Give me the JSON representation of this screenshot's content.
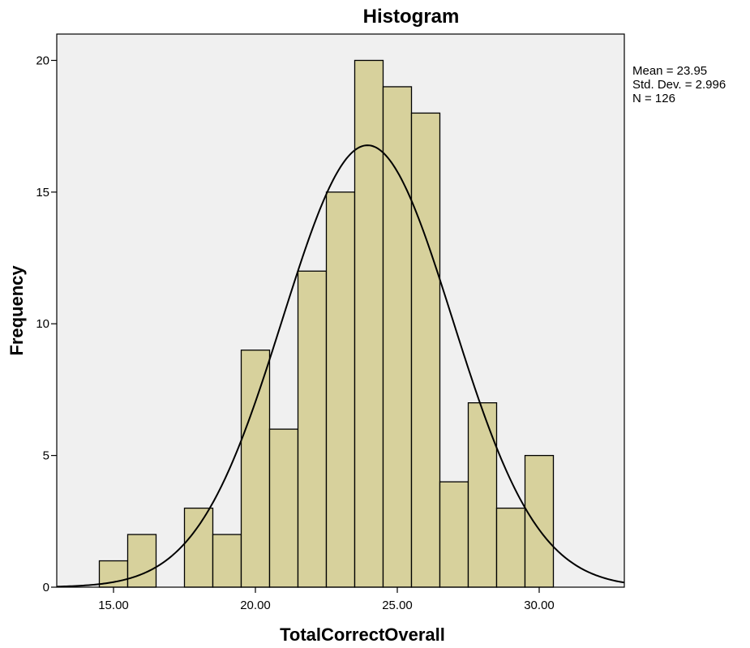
{
  "chart_data": {
    "type": "bar",
    "title": "Histogram",
    "xlabel": "TotalCorrectOverall",
    "ylabel": "Frequency",
    "xlim": [
      13,
      33
    ],
    "ylim": [
      0,
      21
    ],
    "x_ticks": [
      15,
      20,
      25,
      30
    ],
    "x_tick_labels": [
      "15.00",
      "20.00",
      "25.00",
      "30.00"
    ],
    "y_ticks": [
      0,
      5,
      10,
      15,
      20
    ],
    "y_tick_labels": [
      "0",
      "5",
      "10",
      "15",
      "20"
    ],
    "bin_width": 1,
    "bins": [
      {
        "x": 15,
        "frequency": 1
      },
      {
        "x": 16,
        "frequency": 2
      },
      {
        "x": 17,
        "frequency": 0
      },
      {
        "x": 18,
        "frequency": 3
      },
      {
        "x": 19,
        "frequency": 2
      },
      {
        "x": 20,
        "frequency": 9
      },
      {
        "x": 21,
        "frequency": 6
      },
      {
        "x": 22,
        "frequency": 12
      },
      {
        "x": 23,
        "frequency": 15
      },
      {
        "x": 24,
        "frequency": 20
      },
      {
        "x": 25,
        "frequency": 19
      },
      {
        "x": 26,
        "frequency": 18
      },
      {
        "x": 27,
        "frequency": 4
      },
      {
        "x": 28,
        "frequency": 7
      },
      {
        "x": 29,
        "frequency": 3
      },
      {
        "x": 30,
        "frequency": 5
      }
    ],
    "normal_curve": {
      "mean": 23.95,
      "std_dev": 2.996,
      "n": 126
    },
    "stats_text": [
      "Mean = 23.95",
      "Std. Dev. = 2.996",
      "N = 126"
    ],
    "colors": {
      "bar_fill": "#d7d19c",
      "plot_background": "#f0f0f0",
      "curve": "#000000"
    },
    "grid": false,
    "legend": "none"
  }
}
